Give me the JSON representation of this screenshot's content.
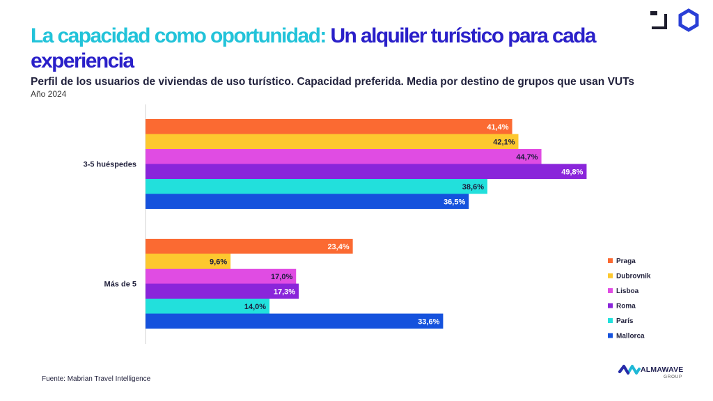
{
  "header": {
    "title_part1": "La capacidad como oportunidad:",
    "title_part2": "Un alquiler turístico para cada experiencia",
    "subtitle": "Perfil de los usuarios de viviendas de uso turístico. Capacidad preferida. Media por destino de grupos que usan VUTs",
    "year": "Año 2024"
  },
  "footer": {
    "source": "Fuente: Mabrian Travel Intelligence",
    "brand_name": "ALMAWAVE",
    "brand_group": "GROUP"
  },
  "chart_data": {
    "type": "bar",
    "orientation": "horizontal",
    "title": "Perfil de los usuarios de viviendas de uso turístico. Capacidad preferida. Media por destino de grupos que usan VUTs",
    "categories": [
      "3-5 huéspedes",
      "Más de 5"
    ],
    "series": [
      {
        "name": "Praga",
        "color": "#fb6a32",
        "values": [
          41.4,
          23.4
        ],
        "labels": [
          "41,4%",
          "23,4%"
        ]
      },
      {
        "name": "Dubrovnik",
        "color": "#fdc82f",
        "values": [
          42.1,
          9.6
        ],
        "labels": [
          "42,1%",
          "9,6%"
        ]
      },
      {
        "name": "Lisboa",
        "color": "#e04ce3",
        "values": [
          44.7,
          17.0
        ],
        "labels": [
          "44,7%",
          "17,0%"
        ]
      },
      {
        "name": "Roma",
        "color": "#8a25da",
        "values": [
          49.8,
          17.3
        ],
        "labels": [
          "49,8%",
          "17,3%"
        ]
      },
      {
        "name": "París",
        "color": "#22e0dc",
        "values": [
          38.6,
          14.0
        ],
        "labels": [
          "38,6%",
          "14,0%"
        ]
      },
      {
        "name": "Mallorca",
        "color": "#1552dd",
        "values": [
          36.5,
          33.6
        ],
        "labels": [
          "36,5%",
          "33,6%"
        ]
      }
    ],
    "xlim": [
      0,
      50
    ],
    "legend": "bottom-right",
    "grid": false
  }
}
